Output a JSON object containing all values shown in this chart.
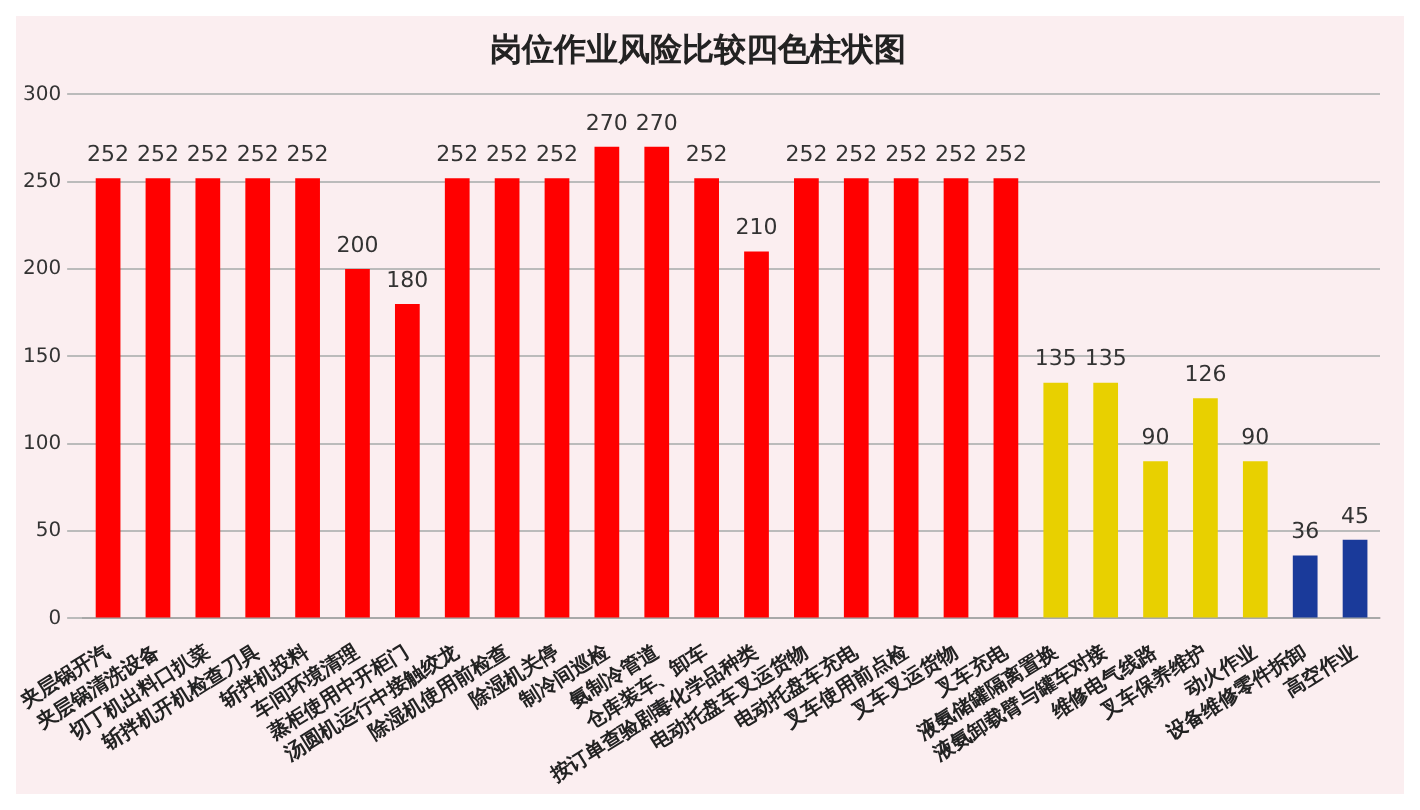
{
  "chart_data": {
    "type": "bar",
    "title": "岗位作业风险比较四色柱状图",
    "categories": [
      "夹层锅开汽",
      "夹层锅清洗设备",
      "切丁机出料口扒菜",
      "斩拌机开机检查刀具",
      "斩拌机投料",
      "车间环境清理",
      "蒸柜使用中开柜门",
      "汤圆机运行中接触绞龙",
      "除湿机使用前检查",
      "除湿机关停",
      "制冷间巡检",
      "氨制冷管道",
      "仓库装车、卸车",
      "按订单查验剧毒化学品种类",
      "电动托盘车叉运货物",
      "电动托盘车充电",
      "叉车使用前点检",
      "叉车叉运货物",
      "叉车充电",
      "液氨储罐隔离置换",
      "液氨卸载臂与罐车对接",
      "维修电气线路",
      "叉车保养维护",
      "动火作业",
      "设备维修零件拆卸",
      "高空作业"
    ],
    "values": [
      252,
      252,
      252,
      252,
      252,
      200,
      180,
      252,
      252,
      252,
      270,
      270,
      252,
      210,
      252,
      252,
      252,
      252,
      252,
      135,
      135,
      90,
      126,
      90,
      36,
      45
    ],
    "colors": [
      "#ff0000",
      "#ff0000",
      "#ff0000",
      "#ff0000",
      "#ff0000",
      "#ff0000",
      "#ff0000",
      "#ff0000",
      "#ff0000",
      "#ff0000",
      "#ff0000",
      "#ff0000",
      "#ff0000",
      "#ff0000",
      "#ff0000",
      "#ff0000",
      "#ff0000",
      "#ff0000",
      "#ff0000",
      "#e8d000",
      "#e8d000",
      "#e8d000",
      "#e8d000",
      "#e8d000",
      "#1a3a9a",
      "#1a3a9a"
    ],
    "ylim": [
      0,
      300
    ],
    "yticks": [
      0,
      50,
      100,
      150,
      200,
      250,
      300
    ],
    "grid": "y",
    "data_labels": true,
    "legend": false
  }
}
